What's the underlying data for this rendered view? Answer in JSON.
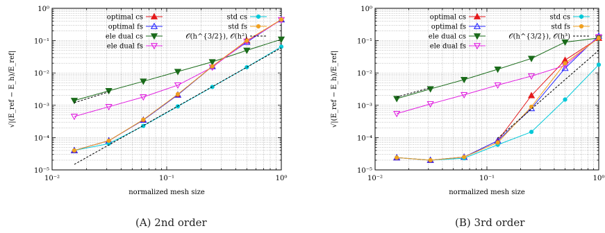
{
  "chart_data": [
    {
      "type": "line",
      "caption": "(A) 2nd order",
      "xlabel": "normalized mesh size",
      "ylabel": "√|(E_ref − E_h)/E_ref|",
      "xscale": "log",
      "yscale": "log",
      "xlim": [
        0.01,
        1
      ],
      "ylim": [
        1e-05,
        1
      ],
      "x_ticks": [
        "10⁻²",
        "10⁻¹",
        "10⁰"
      ],
      "y_ticks": [
        "10⁻⁵",
        "10⁻⁴",
        "10⁻³",
        "10⁻²",
        "10⁻¹",
        "10⁰"
      ],
      "grid": true,
      "legend": "top",
      "series": [
        {
          "name": "optimal cs",
          "color": "#e41a1c",
          "marker": "triangle-filled",
          "x": [
            0.015625,
            0.03125,
            0.0625,
            0.125,
            0.25,
            0.5,
            1
          ],
          "y": [
            4e-05,
            8e-05,
            0.00035,
            0.0021,
            0.016,
            0.1,
            0.45
          ]
        },
        {
          "name": "optimal fs",
          "color": "#2b2bff",
          "marker": "triangle-open",
          "x": [
            0.015625,
            0.03125,
            0.0625,
            0.125,
            0.25,
            0.5,
            1
          ],
          "y": [
            4e-05,
            8e-05,
            0.00035,
            0.0021,
            0.016,
            0.09,
            0.45
          ]
        },
        {
          "name": "ele dual cs",
          "color": "#1a6b1a",
          "marker": "triangle-down-filled",
          "x": [
            0.015625,
            0.03125,
            0.0625,
            0.125,
            0.25,
            0.5,
            1
          ],
          "y": [
            0.0014,
            0.0028,
            0.0055,
            0.011,
            0.022,
            0.05,
            0.11
          ]
        },
        {
          "name": "ele dual fs",
          "color": "#e020e0",
          "marker": "triangle-down-open",
          "x": [
            0.015625,
            0.03125,
            0.0625,
            0.125,
            0.25,
            0.5,
            1
          ],
          "y": [
            0.00045,
            0.0009,
            0.0018,
            0.0042,
            0.015,
            0.095,
            0.44
          ]
        },
        {
          "name": "std cs",
          "color": "#00c8d8",
          "marker": "circle",
          "x": [
            0.015625,
            0.03125,
            0.0625,
            0.125,
            0.25,
            0.5,
            1
          ],
          "y": [
            4e-05,
            6.5e-05,
            0.00023,
            0.00092,
            0.0037,
            0.015,
            0.065
          ]
        },
        {
          "name": "std fs",
          "color": "#f0a020",
          "marker": "circle",
          "x": [
            0.015625,
            0.03125,
            0.0625,
            0.125,
            0.25,
            0.5,
            1
          ],
          "y": [
            4e-05,
            8e-05,
            0.00036,
            0.0022,
            0.016,
            0.1,
            0.45
          ]
        },
        {
          "name": "𝒪(h^{3/2}), 𝒪(h²)",
          "color": "#000000",
          "marker": "none",
          "dashed": true,
          "segments": [
            {
              "x": [
                0.015625,
                1
              ],
              "y": [
                1.48e-05,
                0.06
              ]
            },
            {
              "x": [
                0.015625,
                0.03125
              ],
              "y": [
                0.0012,
                0.0026
              ]
            }
          ]
        }
      ]
    },
    {
      "type": "line",
      "caption": "(B) 3rd order",
      "xlabel": "normalized mesh size",
      "ylabel": "√|(E_ref − E_h)/E_ref|",
      "xscale": "log",
      "yscale": "log",
      "xlim": [
        0.01,
        1
      ],
      "ylim": [
        1e-05,
        1
      ],
      "x_ticks": [
        "10⁻²",
        "10⁻¹",
        "10⁰"
      ],
      "y_ticks": [
        "10⁻⁵",
        "10⁻⁴",
        "10⁻³",
        "10⁻²",
        "10⁻¹",
        "10⁰"
      ],
      "grid": true,
      "legend": "top",
      "series": [
        {
          "name": "optimal cs",
          "color": "#e41a1c",
          "marker": "triangle-filled",
          "x": [
            0.015625,
            0.03125,
            0.0625,
            0.125,
            0.25,
            0.5,
            1
          ],
          "y": [
            2.4e-05,
            2e-05,
            2.5e-05,
            8e-05,
            0.002,
            0.025,
            0.12
          ]
        },
        {
          "name": "optimal fs",
          "color": "#2b2bff",
          "marker": "triangle-open",
          "x": [
            0.015625,
            0.03125,
            0.0625,
            0.125,
            0.25,
            0.5,
            1
          ],
          "y": [
            2.4e-05,
            2e-05,
            2.5e-05,
            8e-05,
            0.0008,
            0.014,
            0.14
          ]
        },
        {
          "name": "ele dual cs",
          "color": "#1a6b1a",
          "marker": "triangle-down-filled",
          "x": [
            0.015625,
            0.03125,
            0.0625,
            0.125,
            0.25,
            0.5,
            1
          ],
          "y": [
            0.0016,
            0.0032,
            0.0062,
            0.013,
            0.028,
            0.09,
            0.12
          ]
        },
        {
          "name": "ele dual fs",
          "color": "#e020e0",
          "marker": "triangle-down-open",
          "x": [
            0.015625,
            0.03125,
            0.0625,
            0.125,
            0.25,
            0.5,
            1
          ],
          "y": [
            0.00055,
            0.0011,
            0.0021,
            0.0042,
            0.008,
            0.017,
            0.13
          ]
        },
        {
          "name": "std cs",
          "color": "#00c8d8",
          "marker": "circle",
          "x": [
            0.015625,
            0.03125,
            0.0625,
            0.125,
            0.25,
            0.5,
            1
          ],
          "y": [
            2.4e-05,
            2e-05,
            2.3e-05,
            6e-05,
            0.00015,
            0.0015,
            0.018
          ]
        },
        {
          "name": "std fs",
          "color": "#f0a020",
          "marker": "circle",
          "x": [
            0.015625,
            0.03125,
            0.0625,
            0.125,
            0.25,
            0.5,
            1
          ],
          "y": [
            2.4e-05,
            2e-05,
            2.5e-05,
            7e-05,
            0.0009,
            0.02,
            0.12
          ]
        },
        {
          "name": "𝒪(h^{3/2}), 𝒪(h³)",
          "color": "#000000",
          "marker": "none",
          "dashed": true,
          "segments": [
            {
              "x": [
                0.125,
                1
              ],
              "y": [
                9.5e-05,
                0.05
              ]
            },
            {
              "x": [
                0.015625,
                0.03125
              ],
              "y": [
                0.0018,
                0.0035
              ]
            }
          ]
        }
      ]
    }
  ]
}
